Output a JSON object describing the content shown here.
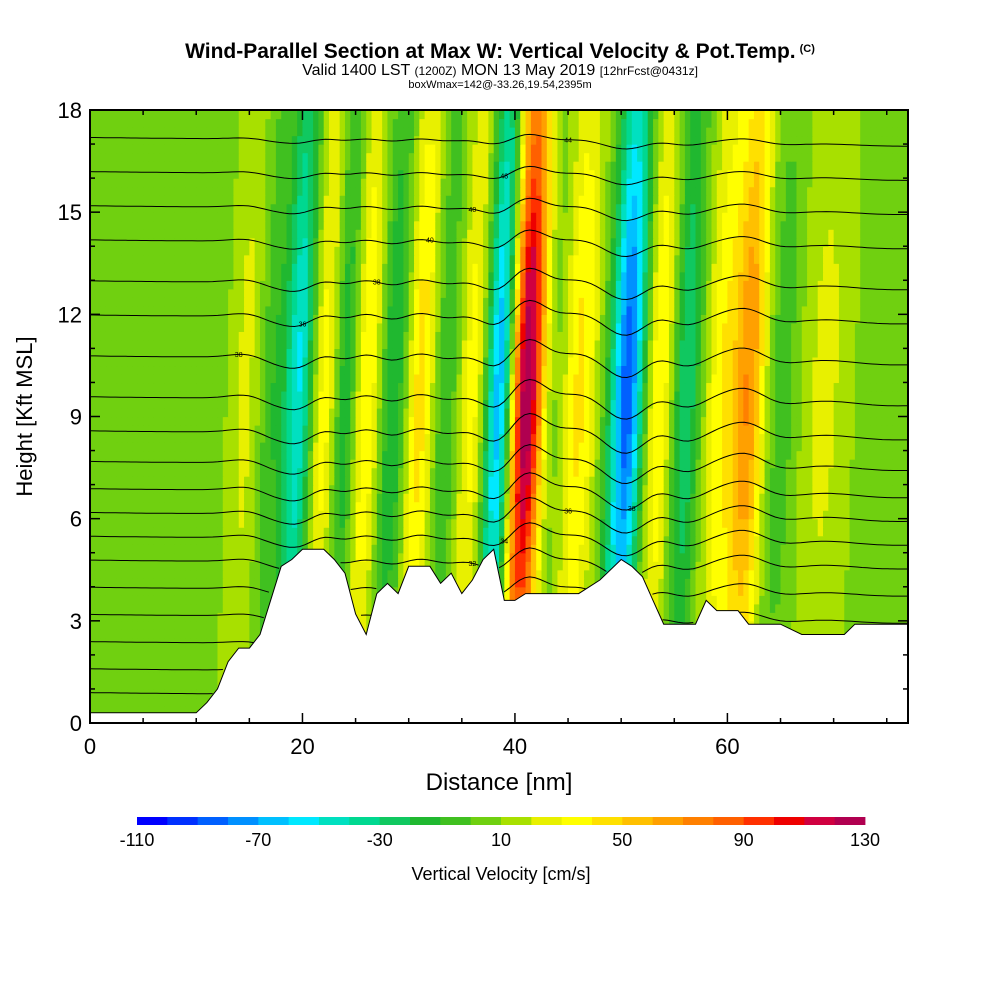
{
  "title": {
    "main": "Wind-Parallel Section at Max W: Vertical Velocity & Pot.Temp.",
    "copyright": "(C)",
    "valid_prefix": "Valid 1400 LST",
    "valid_utc": "(1200Z)",
    "valid_date": "MON 13 May 2019",
    "forecast": "[12hrFcst@0431z]",
    "box_info": "boxWmax=142@-33.26,19.54,2395m"
  },
  "chart_data": {
    "type": "heatmap",
    "xlabel": "Distance [nm]",
    "ylabel": "Height [Kft MSL]",
    "xlim": [
      0,
      77
    ],
    "ylim": [
      0,
      18
    ],
    "x_ticks": [
      "0",
      "20",
      "40",
      "60"
    ],
    "y_ticks": [
      "0",
      "3",
      "6",
      "9",
      "12",
      "15",
      "18"
    ],
    "colorbar": {
      "label": "Vertical Velocity [cm/s]",
      "range": [
        -110,
        130
      ],
      "step": 10,
      "tick_labels": [
        "-110",
        "-70",
        "-30",
        "10",
        "50",
        "90",
        "130"
      ],
      "colors": [
        "#0000ff",
        "#0030ff",
        "#0060ff",
        "#0090ff",
        "#00c0ff",
        "#00e8ff",
        "#00e0c0",
        "#00d890",
        "#10c860",
        "#20b830",
        "#40c020",
        "#70d010",
        "#a8e000",
        "#e8f000",
        "#ffff00",
        "#ffe000",
        "#ffc000",
        "#ffa000",
        "#ff8000",
        "#ff6000",
        "#ff3000",
        "#ee0000",
        "#d00040",
        "#b00050"
      ]
    },
    "plumes": [
      {
        "x": 4,
        "w": 6.0,
        "amp": -4
      },
      {
        "x": 14.5,
        "w": 1.3,
        "amp": 15
      },
      {
        "x": 17,
        "w": 1.0,
        "amp": -15
      },
      {
        "x": 19.5,
        "w": 1.4,
        "amp": -60
      },
      {
        "x": 22,
        "w": 1.3,
        "amp": 30
      },
      {
        "x": 24,
        "w": 1.2,
        "amp": -30
      },
      {
        "x": 26,
        "w": 1.4,
        "amp": 35
      },
      {
        "x": 28.5,
        "w": 1.5,
        "amp": -30
      },
      {
        "x": 31,
        "w": 1.4,
        "amp": 40
      },
      {
        "x": 33.5,
        "w": 1.5,
        "amp": -20
      },
      {
        "x": 36,
        "w": 1.6,
        "amp": 30
      },
      {
        "x": 38.5,
        "w": 1.4,
        "amp": -85
      },
      {
        "x": 41,
        "w": 1.6,
        "amp": 125
      },
      {
        "x": 43.5,
        "w": 1.3,
        "amp": -10
      },
      {
        "x": 46,
        "w": 1.6,
        "amp": 35
      },
      {
        "x": 50.5,
        "w": 1.6,
        "amp": -95
      },
      {
        "x": 53.5,
        "w": 1.5,
        "amp": 35
      },
      {
        "x": 56,
        "w": 1.4,
        "amp": -40
      },
      {
        "x": 59.5,
        "w": 1.7,
        "amp": 30
      },
      {
        "x": 62,
        "w": 1.5,
        "amp": 60
      },
      {
        "x": 65,
        "w": 1.8,
        "amp": -15
      },
      {
        "x": 69,
        "w": 2.5,
        "amp": 15
      },
      {
        "x": 75,
        "w": 2.5,
        "amp": -8
      }
    ],
    "terrain": [
      [
        0,
        0.3
      ],
      [
        10,
        0.3
      ],
      [
        11,
        0.6
      ],
      [
        12,
        1.0
      ],
      [
        13,
        1.8
      ],
      [
        14,
        2.2
      ],
      [
        15,
        2.2
      ],
      [
        16,
        2.6
      ],
      [
        18,
        4.6
      ],
      [
        19,
        4.8
      ],
      [
        20,
        5.1
      ],
      [
        22,
        5.1
      ],
      [
        23,
        4.8
      ],
      [
        24,
        4.4
      ],
      [
        25,
        3.2
      ],
      [
        26,
        2.6
      ],
      [
        27,
        3.8
      ],
      [
        28,
        4.1
      ],
      [
        29,
        3.8
      ],
      [
        30,
        4.6
      ],
      [
        32,
        4.6
      ],
      [
        33,
        4.1
      ],
      [
        34,
        4.4
      ],
      [
        35,
        3.8
      ],
      [
        36,
        4.2
      ],
      [
        37,
        4.8
      ],
      [
        38,
        5.1
      ],
      [
        39,
        3.6
      ],
      [
        40,
        3.6
      ],
      [
        41,
        3.8
      ],
      [
        46,
        3.8
      ],
      [
        48,
        4.2
      ],
      [
        50,
        4.8
      ],
      [
        51,
        4.6
      ],
      [
        52,
        4.3
      ],
      [
        53,
        3.6
      ],
      [
        54,
        2.9
      ],
      [
        57,
        2.9
      ],
      [
        58,
        3.6
      ],
      [
        59,
        3.3
      ],
      [
        61,
        3.3
      ],
      [
        62,
        2.9
      ],
      [
        65,
        2.9
      ],
      [
        67,
        2.6
      ],
      [
        71,
        2.6
      ],
      [
        72,
        2.9
      ],
      [
        77,
        2.9
      ]
    ],
    "isentropes": [
      {
        "base": 0.9,
        "label": ""
      },
      {
        "base": 1.6,
        "label": ""
      },
      {
        "base": 2.4,
        "label": ""
      },
      {
        "base": 3.2,
        "label": ""
      },
      {
        "base": 4.0,
        "label": ""
      },
      {
        "base": 4.8,
        "label": "32"
      },
      {
        "base": 5.5,
        "label": "34"
      },
      {
        "base": 6.2,
        "label": "36"
      },
      {
        "base": 6.9,
        "label": "38"
      },
      {
        "base": 7.7,
        "label": ""
      },
      {
        "base": 8.6,
        "label": ""
      },
      {
        "base": 9.6,
        "label": ""
      },
      {
        "base": 10.8,
        "label": "38"
      },
      {
        "base": 12.0,
        "label": "36"
      },
      {
        "base": 13.0,
        "label": "38"
      },
      {
        "base": 14.2,
        "label": "40"
      },
      {
        "base": 15.2,
        "label": "40"
      },
      {
        "base": 16.2,
        "label": "48"
      },
      {
        "base": 17.2,
        "label": "44"
      }
    ]
  }
}
